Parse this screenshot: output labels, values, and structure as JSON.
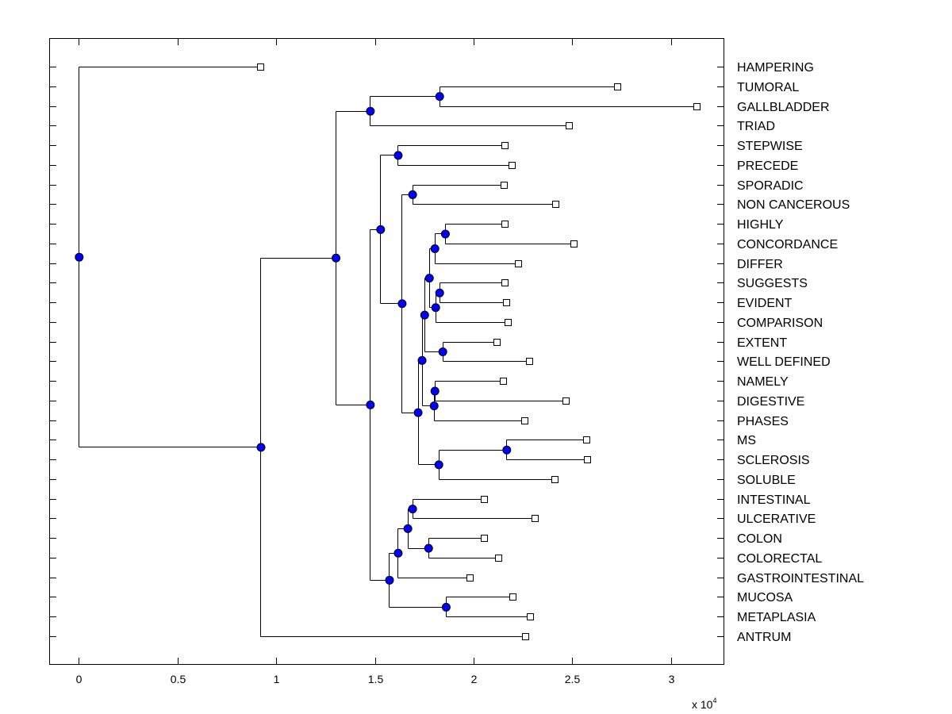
{
  "chart_data": {
    "type": "dendrogram",
    "orientation": "horizontal, leaves on right",
    "x_multiplier_label": {
      "base": "x 10",
      "exponent": "4"
    },
    "xlim": [
      -0.15,
      3.27
    ],
    "xticks": [
      0,
      0.5,
      1,
      1.5,
      2,
      2.5,
      3
    ],
    "xtick_labels": [
      "0",
      "0.5",
      "1",
      "1.5",
      "2",
      "2.5",
      "3"
    ],
    "grid": false,
    "colors": {
      "node_fill": "#0000ff",
      "leaf_fill": "#ffffff",
      "line": "#000000"
    },
    "tree": {
      "x": 0,
      "children": [
        {
          "label": "HAMPERING",
          "x": 0.921
        },
        {
          "x": 0.921,
          "children": [
            {
              "x": 1.301,
              "children": [
                {
                  "x": 1.475,
                  "children": [
                    {
                      "x": 1.826,
                      "children": [
                        {
                          "label": "TUMORAL",
                          "x": 2.727
                        },
                        {
                          "label": "GALLBLADDER",
                          "x": 3.131
                        }
                      ]
                    },
                    {
                      "label": "TRIAD",
                      "x": 2.481
                    }
                  ]
                },
                {
                  "x": 1.475,
                  "children": [
                    {
                      "x": 1.527,
                      "children": [
                        {
                          "x": 1.616,
                          "children": [
                            {
                              "label": "STEPWISE",
                              "x": 2.158
                            },
                            {
                              "label": "PRECEDE",
                              "x": 2.194
                            }
                          ]
                        },
                        {
                          "x": 1.636,
                          "children": [
                            {
                              "x": 1.689,
                              "children": [
                                {
                                  "label": "SPORADIC",
                                  "x": 2.154
                                },
                                {
                                  "label": "NON CANCEROUS",
                                  "x": 2.416
                                }
                              ]
                            },
                            {
                              "x": 1.717,
                              "children": [
                                {
                                  "x": 1.737,
                                  "children": [
                                    {
                                      "x": 1.75,
                                      "children": [
                                        {
                                          "x": 1.774,
                                          "children": [
                                            {
                                              "x": 1.802,
                                              "children": [
                                                {
                                                  "x": 1.855,
                                                  "children": [
                                                    {
                                                      "label": "HIGHLY",
                                                      "x": 2.158
                                                    },
                                                    {
                                                      "label": "CONCORDANCE",
                                                      "x": 2.505
                                                    }
                                                  ]
                                                },
                                                {
                                                  "label": "DIFFER",
                                                  "x": 2.226
                                                }
                                              ]
                                            },
                                            {
                                              "x": 1.806,
                                              "children": [
                                                {
                                                  "x": 1.826,
                                                  "children": [
                                                    {
                                                      "label": "SUGGESTS",
                                                      "x": 2.158
                                                    },
                                                    {
                                                      "label": "EVIDENT",
                                                      "x": 2.166
                                                    }
                                                  ]
                                                },
                                                {
                                                  "label": "COMPARISON",
                                                  "x": 2.174
                                                }
                                              ]
                                            }
                                          ]
                                        },
                                        {
                                          "x": 1.842,
                                          "children": [
                                            {
                                              "label": "EXTENT",
                                              "x": 2.117
                                            },
                                            {
                                              "label": "WELL DEFINED",
                                              "x": 2.283
                                            }
                                          ]
                                        }
                                      ]
                                    },
                                    {
                                      "x": 1.798,
                                      "children": [
                                        {
                                          "x": 1.802,
                                          "children": [
                                            {
                                              "label": "NAMELY",
                                              "x": 2.149
                                            },
                                            {
                                              "label": "DIGESTIVE",
                                              "x": 2.465
                                            }
                                          ]
                                        },
                                        {
                                          "label": "PHASES",
                                          "x": 2.259
                                        }
                                      ]
                                    }
                                  ]
                                },
                                {
                                  "x": 1.822,
                                  "children": [
                                    {
                                      "x": 2.166,
                                      "children": [
                                        {
                                          "label": "MS",
                                          "x": 2.57
                                        },
                                        {
                                          "label": "SCLEROSIS",
                                          "x": 2.574
                                        }
                                      ]
                                    },
                                    {
                                      "label": "SOLUBLE",
                                      "x": 2.408
                                    }
                                  ]
                                }
                              ]
                            }
                          ]
                        }
                      ]
                    },
                    {
                      "x": 1.572,
                      "children": [
                        {
                          "x": 1.616,
                          "children": [
                            {
                              "x": 1.665,
                              "children": [
                                {
                                  "x": 1.689,
                                  "children": [
                                    {
                                      "label": "INTESTINAL",
                                      "x": 2.053
                                    },
                                    {
                                      "label": "ULCERATIVE",
                                      "x": 2.311
                                    }
                                  ]
                                },
                                {
                                  "x": 1.77,
                                  "children": [
                                    {
                                      "label": "COLON",
                                      "x": 2.053
                                    },
                                    {
                                      "label": "COLORECTAL",
                                      "x": 2.125
                                    }
                                  ]
                                }
                              ]
                            },
                            {
                              "label": "GASTROINTESTINAL",
                              "x": 1.98
                            }
                          ]
                        },
                        {
                          "x": 1.859,
                          "children": [
                            {
                              "label": "MUCOSA",
                              "x": 2.198
                            },
                            {
                              "label": "METAPLASIA",
                              "x": 2.287
                            }
                          ]
                        }
                      ]
                    }
                  ]
                }
              ]
            },
            {
              "label": "ANTRUM",
              "x": 2.263
            }
          ]
        }
      ]
    }
  }
}
